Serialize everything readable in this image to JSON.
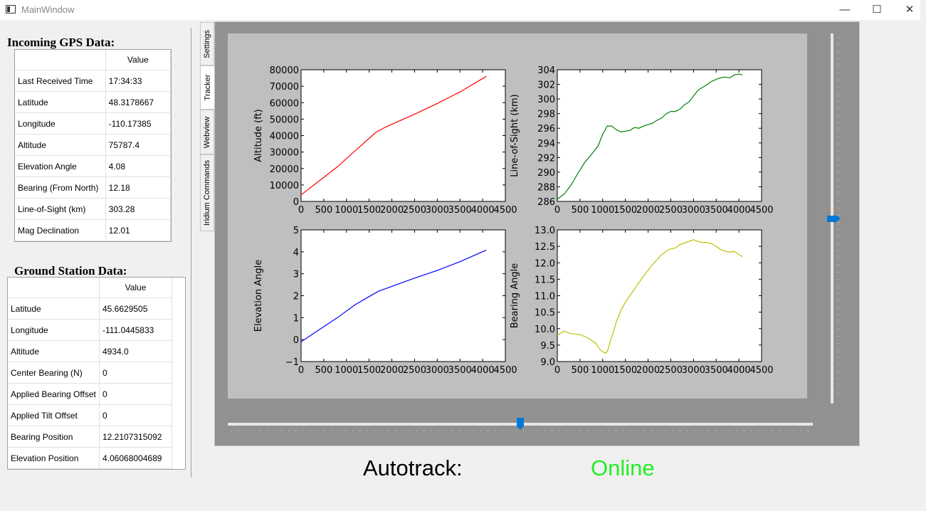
{
  "window": {
    "title": "MainWindow",
    "min_glyph": "—",
    "max_glyph": "☐",
    "close_glyph": "✕",
    "icon": "app-window-icon"
  },
  "gps": {
    "title": "Incoming GPS Data:",
    "value_header": "Value",
    "rows": [
      {
        "label": "Last Received Time",
        "value": "17:34:33"
      },
      {
        "label": "Latitude",
        "value": "48.3178667"
      },
      {
        "label": "Longitude",
        "value": "-110.17385"
      },
      {
        "label": "Altitude",
        "value": "75787.4"
      },
      {
        "label": "Elevation Angle",
        "value": "4.08"
      },
      {
        "label": "Bearing (From North)",
        "value": "12.18"
      },
      {
        "label": "Line-of-Sight (km)",
        "value": "303.28"
      },
      {
        "label": "Mag Declination",
        "value": "12.01"
      }
    ]
  },
  "ground": {
    "title": "Ground Station Data:",
    "value_header": "Value",
    "rows": [
      {
        "label": "Latitude",
        "value": "45.6629505"
      },
      {
        "label": "Longitude",
        "value": "-111.0445833"
      },
      {
        "label": "Altitude",
        "value": "4934.0"
      },
      {
        "label": "Center Bearing (N)",
        "value": "0"
      },
      {
        "label": "Applied Bearing Offset",
        "value": "0"
      },
      {
        "label": "Applied Tilt Offset",
        "value": "0"
      },
      {
        "label": "Bearing Position",
        "value": "12.2107315092"
      },
      {
        "label": "Elevation Position",
        "value": "4.06068004689"
      }
    ]
  },
  "tabs": [
    {
      "label": "Settings",
      "active": false
    },
    {
      "label": "Tracker",
      "active": true
    },
    {
      "label": "Webview",
      "active": false
    },
    {
      "label": "Iridium Commands",
      "active": false
    }
  ],
  "status": {
    "label": "Autotrack:",
    "value": "Online",
    "value_color": "#22ee22"
  },
  "sliders": {
    "vertical_value": 0.5,
    "horizontal_value": 0.5
  },
  "chart_data": [
    {
      "type": "line",
      "xlabel": "",
      "ylabel": "Altitude (ft)",
      "xlim": [
        0,
        4500
      ],
      "ylim": [
        0,
        80000
      ],
      "xticks": [
        0,
        500,
        1000,
        1500,
        2000,
        2500,
        3000,
        3500,
        4000,
        4500
      ],
      "yticks": [
        0,
        10000,
        20000,
        30000,
        40000,
        50000,
        60000,
        70000,
        80000
      ],
      "series": [
        {
          "color": "#ff0000",
          "x": [
            0,
            400,
            800,
            1200,
            1650,
            1850,
            2500,
            3000,
            3500,
            4080
          ],
          "y": [
            4000,
            12500,
            21000,
            31000,
            42000,
            45000,
            53000,
            59500,
            66500,
            76000
          ]
        }
      ]
    },
    {
      "type": "line",
      "xlabel": "",
      "ylabel": "Line-of-Sight (km)",
      "xlim": [
        0,
        4500
      ],
      "ylim": [
        286,
        304
      ],
      "xticks": [
        0,
        500,
        1000,
        1500,
        2000,
        2500,
        3000,
        3500,
        4000,
        4500
      ],
      "yticks": [
        286,
        288,
        290,
        292,
        294,
        296,
        298,
        300,
        302,
        304
      ],
      "series": [
        {
          "color": "#008000",
          "x": [
            0,
            150,
            300,
            450,
            600,
            750,
            900,
            1000,
            1100,
            1200,
            1300,
            1400,
            1500,
            1600,
            1700,
            1800,
            1900,
            2000,
            2100,
            2200,
            2300,
            2400,
            2500,
            2600,
            2700,
            2800,
            2900,
            3000,
            3100,
            3200,
            3300,
            3400,
            3500,
            3600,
            3700,
            3800,
            3900,
            4000,
            4080
          ],
          "y": [
            286.3,
            287.0,
            288.2,
            289.8,
            291.3,
            292.4,
            293.6,
            295.2,
            296.3,
            296.3,
            295.8,
            295.5,
            295.6,
            295.7,
            296.1,
            296.0,
            296.3,
            296.5,
            296.7,
            297.1,
            297.4,
            298.0,
            298.3,
            298.3,
            298.6,
            299.2,
            299.6,
            300.4,
            301.2,
            301.6,
            302.0,
            302.4,
            302.7,
            302.9,
            303.0,
            302.9,
            303.3,
            303.4,
            303.3
          ]
        }
      ]
    },
    {
      "type": "line",
      "xlabel": "",
      "ylabel": "Elevation Angle",
      "xlim": [
        0,
        4500
      ],
      "ylim": [
        -1,
        5
      ],
      "xticks": [
        0,
        500,
        1000,
        1500,
        2000,
        2500,
        3000,
        3500,
        4000,
        4500
      ],
      "yticks": [
        -1,
        0,
        1,
        2,
        3,
        4,
        5
      ],
      "series": [
        {
          "color": "#0000ff",
          "x": [
            0,
            400,
            800,
            1200,
            1700,
            1900,
            2500,
            3000,
            3500,
            4080
          ],
          "y": [
            -0.1,
            0.45,
            1.0,
            1.6,
            2.2,
            2.35,
            2.8,
            3.15,
            3.55,
            4.08
          ]
        }
      ]
    },
    {
      "type": "line",
      "xlabel": "",
      "ylabel": "Bearing Angle",
      "xlim": [
        0,
        4500
      ],
      "ylim": [
        9.0,
        13.0
      ],
      "xticks": [
        0,
        500,
        1000,
        1500,
        2000,
        2500,
        3000,
        3500,
        4000,
        4500
      ],
      "yticks": [
        9.0,
        9.5,
        10.0,
        10.5,
        11.0,
        11.5,
        12.0,
        12.5,
        13.0
      ],
      "series": [
        {
          "color": "#bfbf00",
          "x": [
            0,
            150,
            300,
            500,
            700,
            850,
            950,
            1050,
            1100,
            1200,
            1300,
            1400,
            1500,
            1700,
            1900,
            2100,
            2300,
            2450,
            2600,
            2700,
            2800,
            2900,
            3000,
            3100,
            3200,
            3300,
            3400,
            3500,
            3600,
            3700,
            3800,
            3900,
            4000,
            4080
          ],
          "y": [
            9.8,
            9.92,
            9.85,
            9.82,
            9.7,
            9.55,
            9.35,
            9.25,
            9.3,
            9.75,
            10.2,
            10.55,
            10.8,
            11.2,
            11.6,
            11.95,
            12.25,
            12.4,
            12.45,
            12.55,
            12.6,
            12.65,
            12.7,
            12.65,
            12.62,
            12.62,
            12.58,
            12.5,
            12.4,
            12.35,
            12.32,
            12.35,
            12.25,
            12.18
          ]
        }
      ]
    }
  ]
}
